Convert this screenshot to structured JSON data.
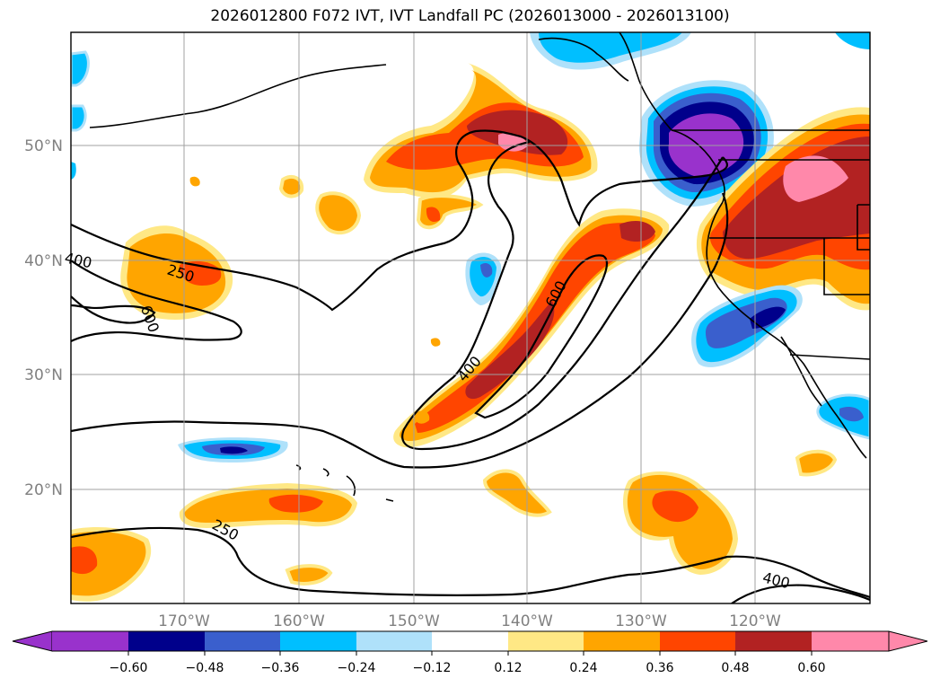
{
  "title": "2026012800 F072 IVT, IVT Landfall PC (2026013000 - 2026013100)",
  "map": {
    "lon_ticks": [
      "170°W",
      "160°W",
      "150°W",
      "140°W",
      "130°W",
      "120°W"
    ],
    "lat_ticks": [
      "50°N",
      "40°N",
      "30°N",
      "20°N"
    ],
    "contour_labels": [
      "400",
      "250",
      "600",
      "600",
      "400",
      "250",
      "400"
    ],
    "grid": true
  },
  "colorbar": {
    "ticks": [
      "−0.60",
      "−0.48",
      "−0.36",
      "−0.24",
      "−0.12",
      "0.12",
      "0.24",
      "0.36",
      "0.48",
      "0.60"
    ],
    "colors": [
      "#9932cc",
      "#00008b",
      "#3a5fcd",
      "#00bfff",
      "#afe1fa",
      "#ffffff",
      "#ffe885",
      "#ffa500",
      "#ff4500",
      "#b22222",
      "#ff88aa"
    ]
  }
}
